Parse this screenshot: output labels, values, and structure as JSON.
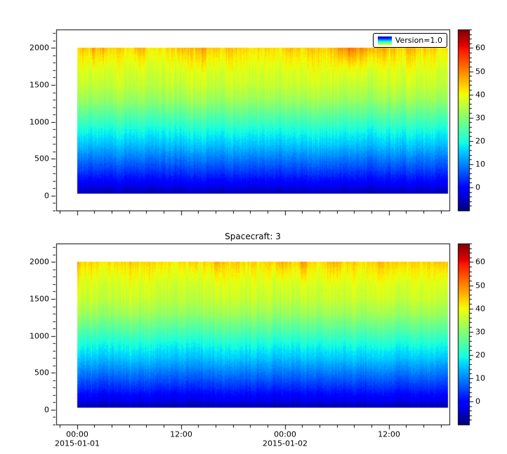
{
  "figure": {
    "background": "#ffffff",
    "text_color": "#000000",
    "axis_color": "#000000"
  },
  "chart_data": {
    "type": "heatmap",
    "colormap": "jet",
    "panels": [
      {
        "name": "top",
        "title": "",
        "legend": "Version=1.0",
        "seed": 20150101,
        "show_x_tick_labels": false
      },
      {
        "name": "bottom",
        "title": "Spacecraft: 3",
        "legend": "",
        "seed": 20150102,
        "show_x_tick_labels": true
      }
    ],
    "x_axis": {
      "kind": "time",
      "range_hours": [
        -2.4,
        43.0
      ],
      "data_range_hours": [
        0,
        42.8
      ],
      "minor_step_hours": 2,
      "major_ticks": [
        {
          "hour": 0,
          "label": "00:00",
          "date": "2015-01-01"
        },
        {
          "hour": 12,
          "label": "12:00"
        },
        {
          "hour": 24,
          "label": "00:00",
          "date": "2015-01-02"
        },
        {
          "hour": 36,
          "label": "12:00"
        }
      ]
    },
    "y_axis": {
      "range": [
        -200,
        2250
      ],
      "data_range": [
        30,
        2000
      ],
      "major_ticks": [
        0,
        500,
        1000,
        1500,
        2000
      ],
      "minor_step": 100
    },
    "colorbar": {
      "colormap": "jet",
      "vmin": -10,
      "vmax": 68,
      "major_ticks": [
        0,
        10,
        20,
        30,
        40,
        50,
        60
      ],
      "minor_step": 2
    },
    "value_profile_alt_value": [
      [
        30,
        -7
      ],
      [
        150,
        -2
      ],
      [
        300,
        3
      ],
      [
        500,
        9
      ],
      [
        700,
        15
      ],
      [
        900,
        20
      ],
      [
        1100,
        26
      ],
      [
        1300,
        32
      ],
      [
        1500,
        36
      ],
      [
        1700,
        38
      ],
      [
        1900,
        41
      ],
      [
        2000,
        43
      ]
    ],
    "noise": {
      "slow_amplitude": 2.5,
      "fast_amplitude": 2.0,
      "pixel_amplitude": 1.3,
      "top_patch_amplitude": 7
    }
  }
}
